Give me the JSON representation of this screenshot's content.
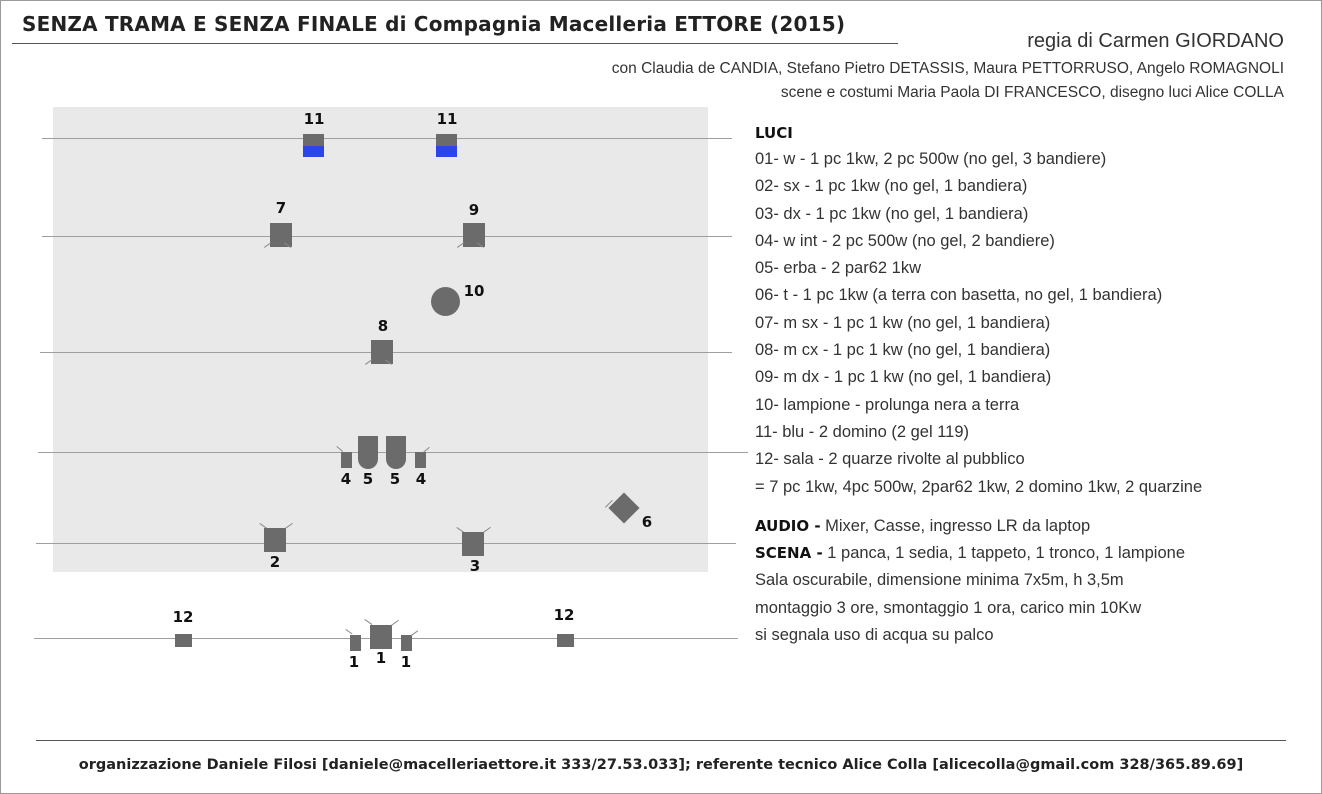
{
  "header": {
    "title": "SENZA TRAMA E SENZA FINALE di Compagnia Macelleria ETTORE (2015)",
    "regia": "regia di Carmen GIORDANO",
    "cast": "con Claudia de CANDIA, Stefano Pietro DETASSIS, Maura PETTORRUSO, Angelo ROMAGNOLI",
    "crew": "scene e costumi Maria Paola DI FRANCESCO, disegno luci Alice COLLA"
  },
  "plot_labels": {
    "l11a": "11",
    "l11b": "11",
    "l7": "7",
    "l9": "9",
    "l10": "10",
    "l8": "8",
    "l4a": "4",
    "l5a": "5",
    "l5b": "5",
    "l4b": "4",
    "l6": "6",
    "l2": "2",
    "l3": "3",
    "l12a": "12",
    "l12b": "12",
    "l1a": "1",
    "l1b": "1",
    "l1c": "1"
  },
  "colors": {
    "stage": "#e9e9e9",
    "fixture": "#6b6b6b",
    "blue_gel": "#2a45e8"
  },
  "luci": {
    "heading": "LUCI",
    "items": [
      "01- w - 1 pc 1kw, 2 pc 500w (no gel, 3 bandiere)",
      "02- sx - 1 pc 1kw (no gel, 1 bandiera)",
      "03- dx - 1 pc 1kw (no gel, 1 bandiera)",
      "04- w int - 2 pc 500w (no gel, 2 bandiere)",
      "05- erba - 2 par62 1kw",
      "06- t - 1 pc 1kw (a terra con basetta, no gel, 1 bandiera)",
      "07- m sx - 1 pc 1 kw (no gel, 1 bandiera)",
      "08- m cx - 1 pc 1 kw (no gel, 1 bandiera)",
      "09- m dx - 1 pc 1 kw (no gel, 1 bandiera)",
      "10- lampione - prolunga nera a terra",
      "11- blu - 2 domino (2 gel 119)",
      "12- sala - 2 quarze rivolte al pubblico",
      "= 7 pc 1kw, 4pc 500w, 2par62 1kw, 2 domino 1kw, 2 quarzine"
    ]
  },
  "audio": {
    "label": "AUDIO -",
    "text": " Mixer, Casse, ingresso LR da laptop"
  },
  "scena": {
    "label": "SCENA -",
    "text": " 1 panca, 1 sedia, 1 tappeto, 1 tronco, 1 lampione"
  },
  "notes": [
    "Sala oscurabile, dimensione minima 7x5m, h 3,5m",
    "montaggio 3 ore, smontaggio 1 ora, carico min 10Kw",
    "si segnala uso di acqua su palco"
  ],
  "footer": "organizzazione Daniele Filosi [daniele@macelleriaettore.it 333/27.53.033]; referente tecnico Alice Colla [alicecolla@gmail.com 328/365.89.69]"
}
